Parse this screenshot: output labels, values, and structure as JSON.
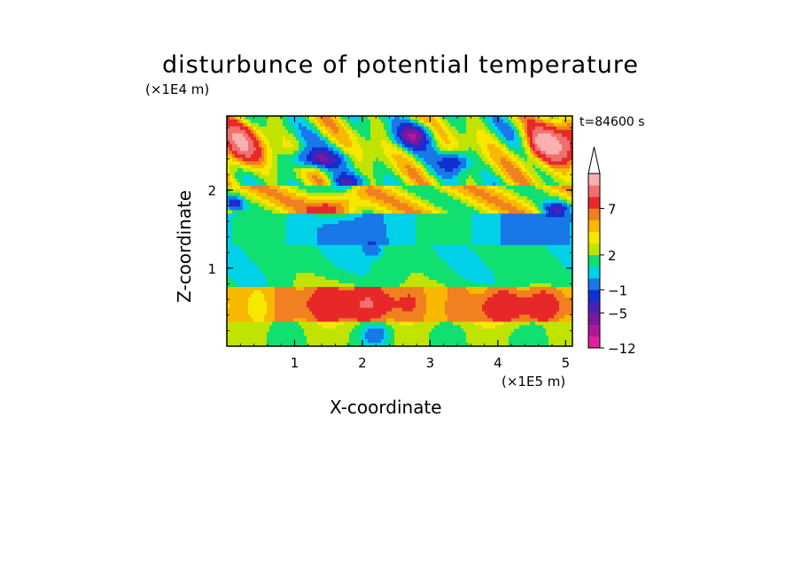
{
  "chart_data": {
    "type": "heatmap",
    "title": "disturbunce of potential temperature",
    "xlabel": "X-coordinate",
    "ylabel": "Z-coordinate",
    "x_unit": "(×1E5 m)",
    "y_unit": "(×1E4 m)",
    "time_label": "t=84600 s",
    "xlim": [
      0,
      5.1
    ],
    "ylim": [
      0,
      2.95
    ],
    "x_ticks": [
      1,
      2,
      3,
      4,
      5
    ],
    "y_ticks": [
      1,
      2
    ],
    "colorbar": {
      "tick_labels": [
        "7",
        "2",
        "−1",
        "−5",
        "−12"
      ],
      "tick_values": [
        7,
        2,
        -1,
        -5,
        -12
      ],
      "extend": "max",
      "colors": [
        "#e0209c",
        "#b0189a",
        "#7c189e",
        "#4a20b8",
        "#1030d0",
        "#1878e8",
        "#00d0e8",
        "#10e070",
        "#c0e400",
        "#f8e800",
        "#f8b800",
        "#f08020",
        "#e82828",
        "#f07070",
        "#f8b0b0"
      ]
    },
    "field_description_layers": [
      {
        "z_range": [
          0,
          0.3
        ],
        "dominant": "green / yellow"
      },
      {
        "z_range": [
          0.3,
          0.75
        ],
        "dominant": "orange / yellow"
      },
      {
        "z_range": [
          0.75,
          1.3
        ],
        "dominant": "green"
      },
      {
        "z_range": [
          1.3,
          1.7
        ],
        "dominant": "cyan / green"
      },
      {
        "z_range": [
          1.7,
          2.05
        ],
        "dominant": "orange / yellow with blue patches"
      },
      {
        "z_range": [
          2.05,
          2.95
        ],
        "dominant": "mixed blue / purple / orange"
      }
    ]
  }
}
